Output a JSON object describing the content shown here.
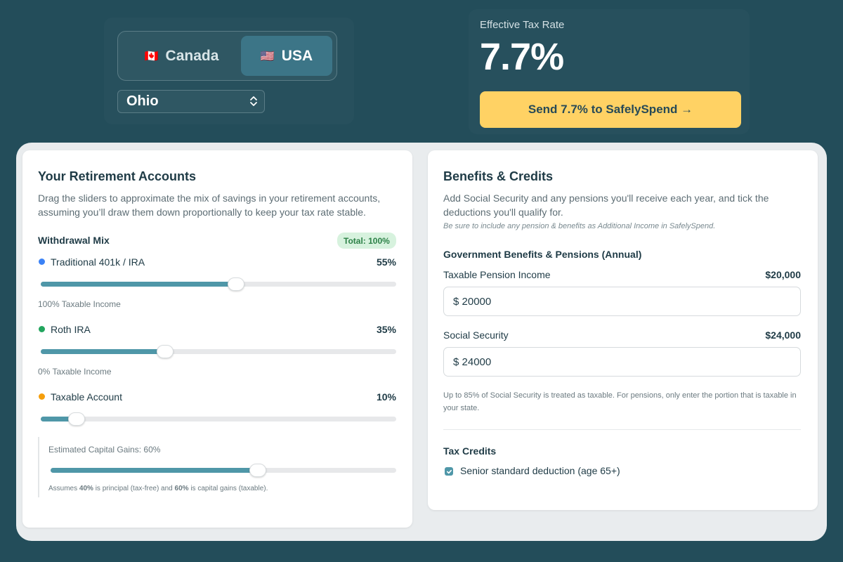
{
  "header": {
    "countries": [
      {
        "flag": "🇨🇦",
        "label": "Canada",
        "selected": false
      },
      {
        "flag": "🇺🇸",
        "label": "USA",
        "selected": true
      }
    ],
    "state": "Ohio",
    "rate_label": "Effective Tax Rate",
    "rate_value": "7.7%",
    "send_button": "Send 7.7% to SafelySpend →"
  },
  "retirement": {
    "title": "Your Retirement Accounts",
    "description": "Drag the sliders to approximate the mix of savings in your retirement accounts, assuming you’ll draw them down proportionally to keep your tax rate stable.",
    "mix_label": "Withdrawal Mix",
    "total_badge": "Total: 100%",
    "accounts": [
      {
        "label": "Traditional 401k / IRA",
        "pct": "55%",
        "value": 55,
        "note": "100% Taxable Income",
        "color": "#3b82f6"
      },
      {
        "label": "Roth IRA",
        "pct": "35%",
        "value": 35,
        "note": "0% Taxable Income",
        "color": "#22a55e"
      },
      {
        "label": "Taxable Account",
        "pct": "10%",
        "value": 10,
        "note": "",
        "color": "#f59e0b"
      }
    ],
    "capital_gains": {
      "label": "Estimated Capital Gains: 60%",
      "value": 60,
      "note_prefix": "Assumes ",
      "principal_pct": "40%",
      "note_mid": " is principal (tax-free) and ",
      "gains_pct": "60%",
      "note_suffix": " is capital gains (taxable)."
    }
  },
  "benefits": {
    "title": "Benefits & Credits",
    "description": "Add Social Security and any pensions you'll receive each year, and tick the deductions you'll qualify for.",
    "hint": "Be sure to include any pension & benefits as Additional Income in SafelySpend.",
    "section_title": "Government Benefits & Pensions (Annual)",
    "pension": {
      "label": "Taxable Pension Income",
      "display": "$20,000",
      "input": "$ 20000"
    },
    "social_security": {
      "label": "Social Security",
      "display": "$24,000",
      "input": "$ 24000"
    },
    "note": "Up to 85% of Social Security is treated as taxable. For pensions, only enter the portion that is taxable in your state.",
    "credits_title": "Tax Credits",
    "credits": [
      {
        "label": "Senior standard deduction (age 65+)",
        "checked": true
      }
    ]
  }
}
